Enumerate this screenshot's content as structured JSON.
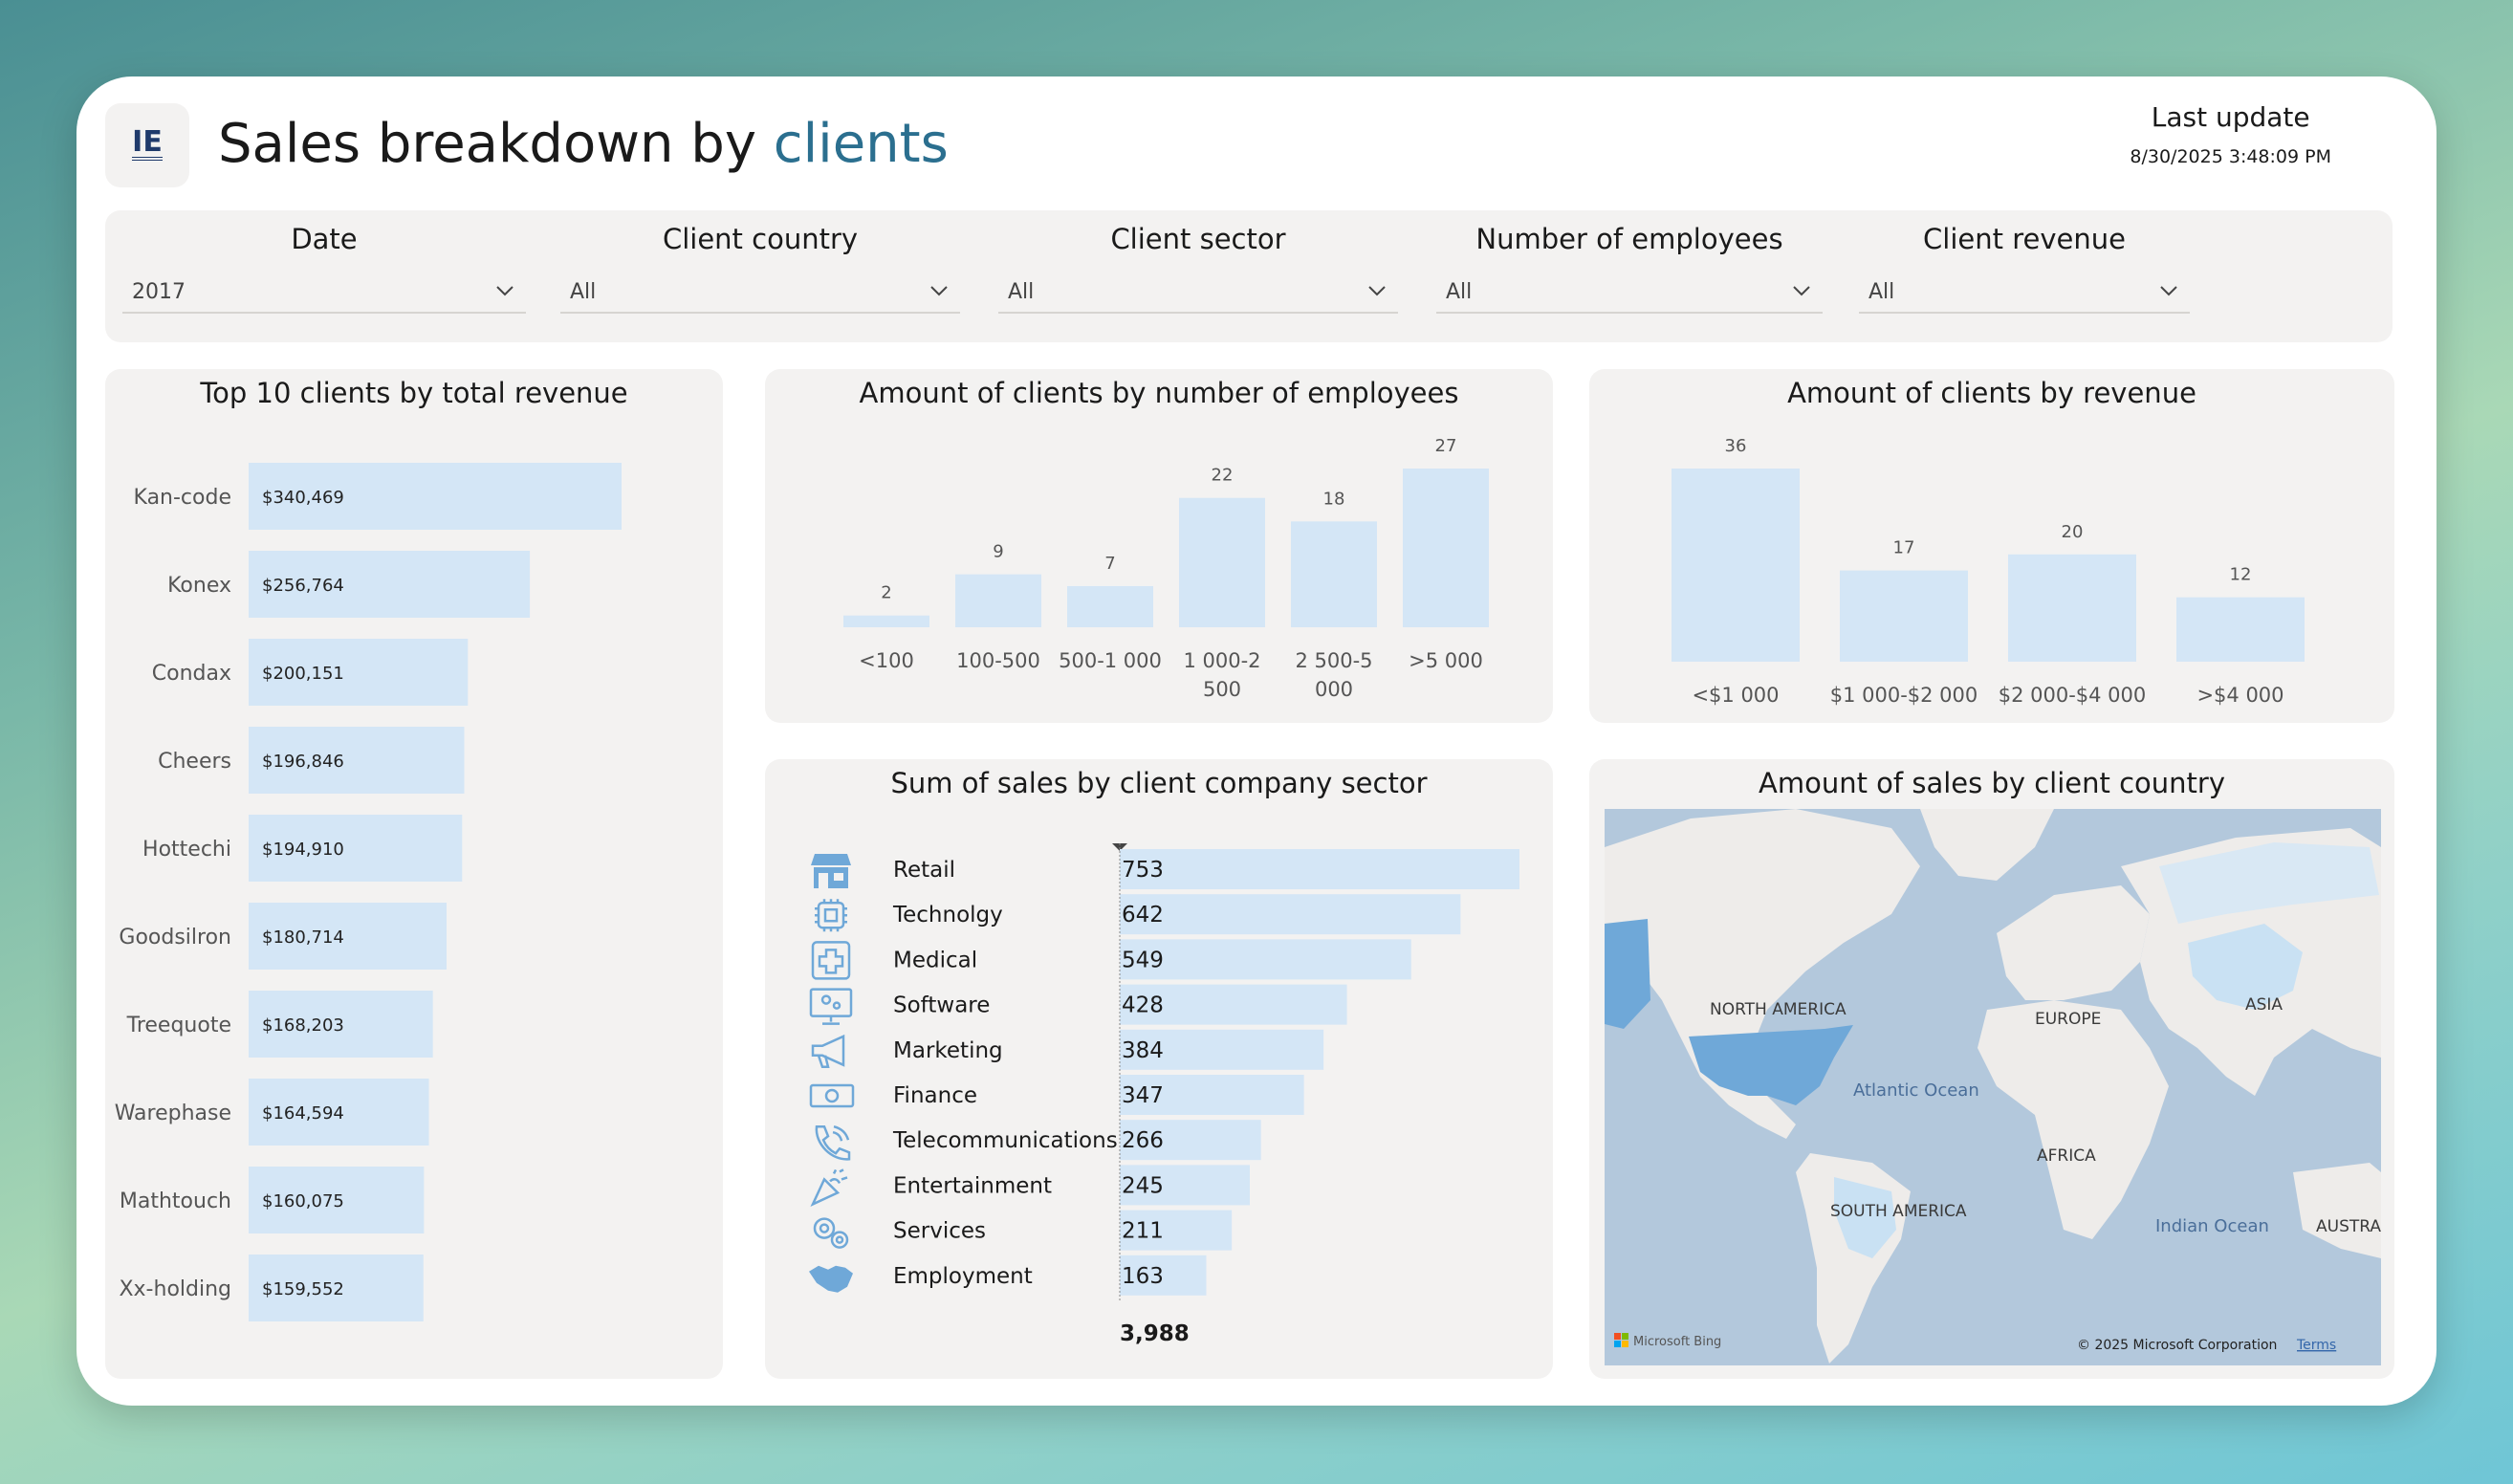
{
  "header": {
    "logo_text": "IE",
    "title_main": "Sales breakdown by",
    "title_accent": "clients",
    "last_update_label": "Last update",
    "last_update_value": "8/30/2025 3:48:09 PM"
  },
  "filters": [
    {
      "label": "Date",
      "value": "2017"
    },
    {
      "label": "Client country",
      "value": "All"
    },
    {
      "label": "Client sector",
      "value": "All"
    },
    {
      "label": "Number of employees",
      "value": "All"
    },
    {
      "label": "Client revenue",
      "value": "All"
    }
  ],
  "panels": {
    "top_clients_title": "Top 10 clients by total revenue",
    "employees_title": "Amount of clients by number of employees",
    "revenue_title": "Amount of clients by revenue",
    "sector_title": "Sum of sales by client company sector",
    "country_title": "Amount of sales by client country"
  },
  "colors": {
    "bar": "#d4e6f6",
    "accent": "#2b6f8f",
    "map_land": "#eeecea",
    "map_water": "#b3c8dc",
    "map_highlight": "#6fa8d8",
    "map_light": "#c9e1f3"
  },
  "chart_data": [
    {
      "type": "bar",
      "orientation": "horizontal",
      "title": "Top 10 clients by total revenue",
      "categories": [
        "Kan-code",
        "Konex",
        "Condax",
        "Cheers",
        "Hottechi",
        "Goodsilron",
        "Treequote",
        "Warephase",
        "Mathtouch",
        "Xx-holding"
      ],
      "values": [
        340469,
        256764,
        200151,
        196846,
        194910,
        180714,
        168203,
        164594,
        160075,
        159552
      ],
      "labels": [
        "$340,469",
        "$256,764",
        "$200,151",
        "$196,846",
        "$194,910",
        "$180,714",
        "$168,203",
        "$164,594",
        "$160,075",
        "$159,552"
      ]
    },
    {
      "type": "bar",
      "title": "Amount of clients by number of employees",
      "categories": [
        "<100",
        "100-500",
        "500-1 000",
        "1 000-2 500",
        "2 500-5 000",
        ">5 000"
      ],
      "category_lines": [
        [
          "<100"
        ],
        [
          "100-500"
        ],
        [
          "500-1 000"
        ],
        [
          "1 000-2",
          "500"
        ],
        [
          "2 500-5",
          "000"
        ],
        [
          ">5 000"
        ]
      ],
      "values": [
        2,
        9,
        7,
        22,
        18,
        27
      ]
    },
    {
      "type": "bar",
      "title": "Amount of clients by revenue",
      "categories": [
        "<$1 000",
        "$1 000-$2 000",
        "$2 000-$4 000",
        ">$4 000"
      ],
      "values": [
        36,
        17,
        20,
        12
      ]
    },
    {
      "type": "table",
      "title": "Sum of sales by client company sector",
      "rows": [
        {
          "sector": "Retail",
          "icon": "store-icon",
          "value": 753
        },
        {
          "sector": "Technolgy",
          "icon": "chip-icon",
          "value": 642
        },
        {
          "sector": "Medical",
          "icon": "medical-cross-icon",
          "value": 549
        },
        {
          "sector": "Software",
          "icon": "monitor-gear-icon",
          "value": 428
        },
        {
          "sector": "Marketing",
          "icon": "megaphone-icon",
          "value": 384
        },
        {
          "sector": "Finance",
          "icon": "banknote-icon",
          "value": 347
        },
        {
          "sector": "Telecommunications",
          "icon": "phone-icon",
          "value": 266
        },
        {
          "sector": "Entertainment",
          "icon": "party-popper-icon",
          "value": 245
        },
        {
          "sector": "Services",
          "icon": "gears-icon",
          "value": 211
        },
        {
          "sector": "Employment",
          "icon": "handshake-icon",
          "value": 163
        }
      ],
      "total": "3,988"
    }
  ],
  "map": {
    "labels": {
      "north_america": "NORTH AMERICA",
      "europe": "EUROPE",
      "asia": "ASIA",
      "atlantic": "Atlantic Ocean",
      "africa": "AFRICA",
      "south_america": "SOUTH AMERICA",
      "indian": "Indian Ocean",
      "australia": "AUSTRA"
    },
    "bing": "Microsoft Bing",
    "copyright": "© 2025 Microsoft Corporation",
    "terms": "Terms"
  }
}
